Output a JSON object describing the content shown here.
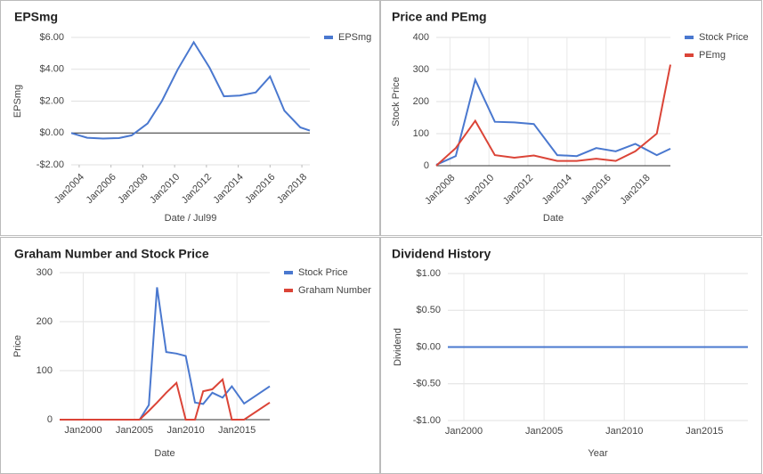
{
  "chart_data": [
    {
      "type": "line",
      "title": "EPSmg",
      "y_label": "EPSmg",
      "x_label": "Date / Jul99",
      "x": [
        2003.5,
        2004.5,
        2005.5,
        2006.5,
        2007.3,
        2008.3,
        2009.2,
        2010.2,
        2011.2,
        2012.2,
        2013.1,
        2014.1,
        2015.1,
        2016,
        2016.9,
        2017.9,
        2018.5
      ],
      "series": [
        {
          "name": "EPSmg",
          "color": "#4a78cf",
          "values": [
            0,
            -0.3,
            -0.35,
            -0.32,
            -0.15,
            0.6,
            2.0,
            4.0,
            5.7,
            4.1,
            2.3,
            2.35,
            2.55,
            3.55,
            1.4,
            0.35,
            0.15
          ]
        }
      ],
      "xlim": [
        2003.5,
        2018.5
      ],
      "xticks": [
        {
          "value": 2004,
          "label": "Jan2004"
        },
        {
          "value": 2006,
          "label": "Jan2006"
        },
        {
          "value": 2008,
          "label": "Jan2008"
        },
        {
          "value": 2010,
          "label": "Jan2010"
        },
        {
          "value": 2012,
          "label": "Jan2012"
        },
        {
          "value": 2014,
          "label": "Jan2014"
        },
        {
          "value": 2016,
          "label": "Jan2016"
        },
        {
          "value": 2018,
          "label": "Jan2018"
        }
      ],
      "ylim": [
        -2,
        6
      ],
      "yticks": [
        {
          "value": -2,
          "label": "-$2.00"
        },
        {
          "value": 0,
          "label": "$0.00"
        },
        {
          "value": 2,
          "label": "$2.00"
        },
        {
          "value": 4,
          "label": "$4.00"
        },
        {
          "value": 6,
          "label": "$6.00"
        }
      ],
      "grid": true,
      "xgrid": false,
      "legend": "right"
    },
    {
      "type": "line",
      "title": "Price and PEmg",
      "y_label": "Stock Price",
      "x_label": "Date",
      "x": [
        2007.3,
        2008.3,
        2009.3,
        2010.3,
        2011.3,
        2012.3,
        2013.5,
        2014.5,
        2015.5,
        2016.5,
        2017.5,
        2018.6,
        2019.3
      ],
      "series": [
        {
          "name": "Stock Price",
          "color": "#4a78cf",
          "values": [
            3,
            30,
            268,
            137,
            135,
            130,
            33,
            30,
            55,
            45,
            68,
            33,
            53
          ]
        },
        {
          "name": "PEmg",
          "color": "#db4437",
          "values": [
            0,
            55,
            140,
            33,
            25,
            32,
            15,
            15,
            22,
            15,
            45,
            100,
            315
          ]
        }
      ],
      "xlim": [
        2007.3,
        2019.3
      ],
      "xticks": [
        {
          "value": 2008,
          "label": "Jan2008"
        },
        {
          "value": 2010,
          "label": "Jan2010"
        },
        {
          "value": 2012,
          "label": "Jan2012"
        },
        {
          "value": 2014,
          "label": "Jan2014"
        },
        {
          "value": 2016,
          "label": "Jan2016"
        },
        {
          "value": 2018,
          "label": "Jan2018"
        }
      ],
      "ylim": [
        0,
        400
      ],
      "yticks": [
        0,
        100,
        200,
        300,
        400
      ],
      "grid": true,
      "xgrid": true,
      "legend": "right"
    },
    {
      "type": "line",
      "title": "Graham Number and Stock Price",
      "y_label": "Price",
      "x_label": "Date",
      "x": [
        1997.7,
        2005.5,
        2006.4,
        2007.2,
        2008.1,
        2009.1,
        2010,
        2010.9,
        2011.7,
        2012.6,
        2013.6,
        2014.5,
        2015.7,
        2018.2
      ],
      "series": [
        {
          "name": "Stock Price",
          "color": "#4a78cf",
          "values": [
            0,
            0,
            30,
            270,
            138,
            135,
            130,
            35,
            32,
            55,
            45,
            68,
            33,
            68
          ]
        },
        {
          "name": "Graham Number",
          "color": "#db4437",
          "values": [
            0,
            0,
            18,
            35,
            55,
            75,
            0,
            0,
            58,
            62,
            82,
            0,
            0,
            35
          ]
        }
      ],
      "xlim": [
        1997.7,
        2018.2
      ],
      "xticks": [
        {
          "value": 2000,
          "label": "Jan2000"
        },
        {
          "value": 2005,
          "label": "Jan2005"
        },
        {
          "value": 2010,
          "label": "Jan2010"
        },
        {
          "value": 2015,
          "label": "Jan2015"
        }
      ],
      "ylim": [
        0,
        300
      ],
      "yticks": [
        0,
        100,
        200,
        300
      ],
      "grid": true,
      "xgrid": true,
      "legend": "right"
    },
    {
      "type": "line",
      "title": "Dividend History",
      "y_label": "Dividend",
      "x_label": "Year",
      "x": [
        1999,
        2017.7
      ],
      "values": [
        0,
        0
      ],
      "color": "#4a78cf",
      "xlim": [
        1999,
        2017.7
      ],
      "xticks": [
        {
          "value": 2000,
          "label": "Jan2000"
        },
        {
          "value": 2005,
          "label": "Jan2005"
        },
        {
          "value": 2010,
          "label": "Jan2010"
        },
        {
          "value": 2015,
          "label": "Jan2015"
        }
      ],
      "ylim": [
        -1,
        1
      ],
      "yticks": [
        {
          "value": -1,
          "label": "-$1.00"
        },
        {
          "value": -0.5,
          "label": "-$0.50"
        },
        {
          "value": 0,
          "label": "$0.00"
        },
        {
          "value": 0.5,
          "label": "$0.50"
        },
        {
          "value": 1,
          "label": "$1.00"
        }
      ],
      "grid": true,
      "xgrid": true
    }
  ]
}
